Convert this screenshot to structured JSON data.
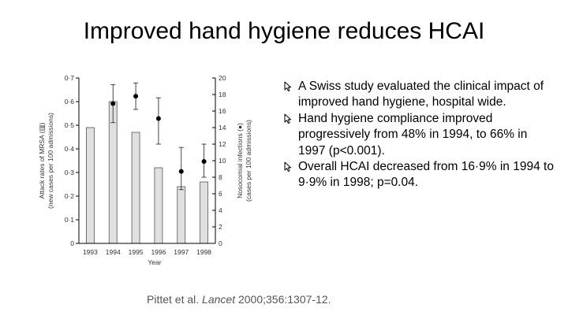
{
  "slide": {
    "title": "Improved hand hygiene reduces HCAI",
    "bullets": [
      "A Swiss study evaluated the clinical impact of improved hand hygiene, hospital wide.",
      "Hand hygiene compliance improved progressively from 48% in 1994, to 66% in 1997 (p<0.001).",
      "Overall HCAI decreased from 16·9% in 1994 to 9·9% in 1998; p=0.04."
    ],
    "citation": {
      "authors": "Pittet et al. ",
      "journal": "Lancet",
      "details": " 2000;356:1307-12."
    },
    "bullet_icon": "cursor-arrow-icon"
  },
  "chart_data": {
    "type": "bar",
    "categories": [
      "1993",
      "1994",
      "1995",
      "1996",
      "1997",
      "1998"
    ],
    "xlabel": "Year",
    "left_axis": {
      "label_lines": [
        "Attack rates of MRSA (▥)",
        "(new cases per 100 admissions)"
      ],
      "ylim": [
        0,
        0.7
      ],
      "ticks": [
        "0",
        "0·1",
        "0·2",
        "0·3",
        "0·4",
        "0·5",
        "0·6",
        "0·7"
      ]
    },
    "right_axis": {
      "label_lines": [
        "Nosocomial infections (●)",
        "(cases per 100 admissions)"
      ],
      "ylim": [
        0,
        20
      ],
      "ticks": [
        "0",
        "2",
        "4",
        "6",
        "8",
        "10",
        "12",
        "14",
        "16",
        "18",
        "20"
      ]
    },
    "series": [
      {
        "name": "MRSA attack rate",
        "kind": "bar",
        "axis": "left",
        "values": [
          0.49,
          0.6,
          0.47,
          0.32,
          0.24,
          0.26
        ],
        "color": "#e0e0e0"
      },
      {
        "name": "Nosocomial infections",
        "kind": "point-errorbar",
        "axis": "right",
        "x": [
          "1994",
          "1995",
          "1996",
          "1997",
          "1998"
        ],
        "values": [
          16.9,
          17.8,
          15.1,
          8.7,
          9.9
        ],
        "lower": [
          14.6,
          16.2,
          12.0,
          6.5,
          8.0
        ],
        "upper": [
          19.2,
          19.4,
          17.6,
          11.6,
          12.0
        ],
        "color": "#000000"
      }
    ]
  }
}
